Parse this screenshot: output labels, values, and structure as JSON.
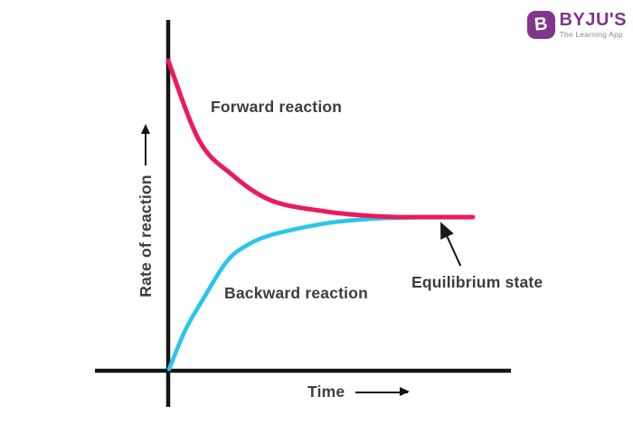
{
  "logo": {
    "brand": "BYJU'S",
    "tagline": "The Learning App",
    "icon_letter": "B",
    "purple": "#82358C",
    "tagline_color": "#8c8c8c"
  },
  "chart_data": {
    "type": "line",
    "title": "",
    "xlabel": "Time",
    "ylabel": "Rate of reaction",
    "xlim": [
      0,
      100
    ],
    "ylim": [
      0,
      100
    ],
    "grid": false,
    "legend_position": "on-curve-labels",
    "axis_color": "#141414",
    "label_color": "#3d3d3d",
    "x_axis_note": "no tick marks or numeric scale shown",
    "y_axis_note": "no tick marks or numeric scale shown",
    "series": [
      {
        "name": "Backward reaction",
        "color": "#2BC5EC",
        "points": [
          [
            0.3,
            0.5
          ],
          [
            5,
            11.6
          ],
          [
            10.3,
            20.6
          ],
          [
            16.9,
            30.9
          ],
          [
            22.2,
            35.3
          ],
          [
            30.1,
            38.7
          ],
          [
            45.9,
            42.0
          ],
          [
            58,
            43.2
          ],
          [
            68,
            43.6
          ],
          [
            72,
            43.7
          ]
        ]
      },
      {
        "name": "Forward reaction",
        "color": "#EC1A5C",
        "points": [
          [
            0,
            88.4
          ],
          [
            9,
            65.7
          ],
          [
            18.2,
            56.2
          ],
          [
            30.1,
            48.5
          ],
          [
            45.9,
            45.4
          ],
          [
            58,
            44.2
          ],
          [
            67,
            43.8
          ],
          [
            75,
            43.8
          ],
          [
            88.9,
            43.8
          ]
        ]
      }
    ],
    "annotation": {
      "label": "Equilibrium state",
      "points_to": [
        79.5,
        43.8
      ],
      "meaning": "forward and backward rates become equal where curves merge"
    }
  }
}
